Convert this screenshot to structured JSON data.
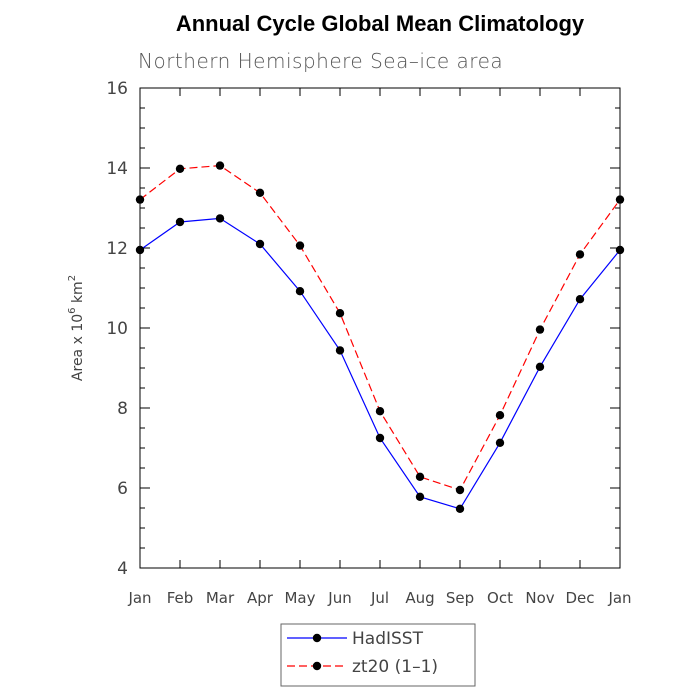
{
  "chart_data": {
    "type": "line",
    "title": "Annual Cycle Global Mean Climatology",
    "subtitle": "Northern Hemisphere Sea–ice area",
    "ylabel_prefix": "Area x 10",
    "ylabel_exp1": "6",
    "ylabel_unit": " km",
    "ylabel_exp2": "2",
    "ylim": [
      4,
      16
    ],
    "yticks": [
      4,
      6,
      8,
      10,
      12,
      14,
      16
    ],
    "categories": [
      "Jan",
      "Feb",
      "Mar",
      "Apr",
      "May",
      "Jun",
      "Jul",
      "Aug",
      "Sep",
      "Oct",
      "Nov",
      "Dec",
      "Jan"
    ],
    "grid": false,
    "legend_position": "bottom",
    "series": [
      {
        "name": "HadISST",
        "color": "#0000ff",
        "dash": "solid",
        "values": [
          11.95,
          12.65,
          12.74,
          12.1,
          10.92,
          9.44,
          7.25,
          5.78,
          5.48,
          7.13,
          9.03,
          10.72,
          11.95
        ]
      },
      {
        "name": "zt20 (1–1)",
        "color": "#ff0000",
        "dash": "dashed",
        "values": [
          13.21,
          13.98,
          14.06,
          13.38,
          12.06,
          10.37,
          7.92,
          6.28,
          5.95,
          7.82,
          9.96,
          11.84,
          13.21
        ]
      }
    ]
  }
}
